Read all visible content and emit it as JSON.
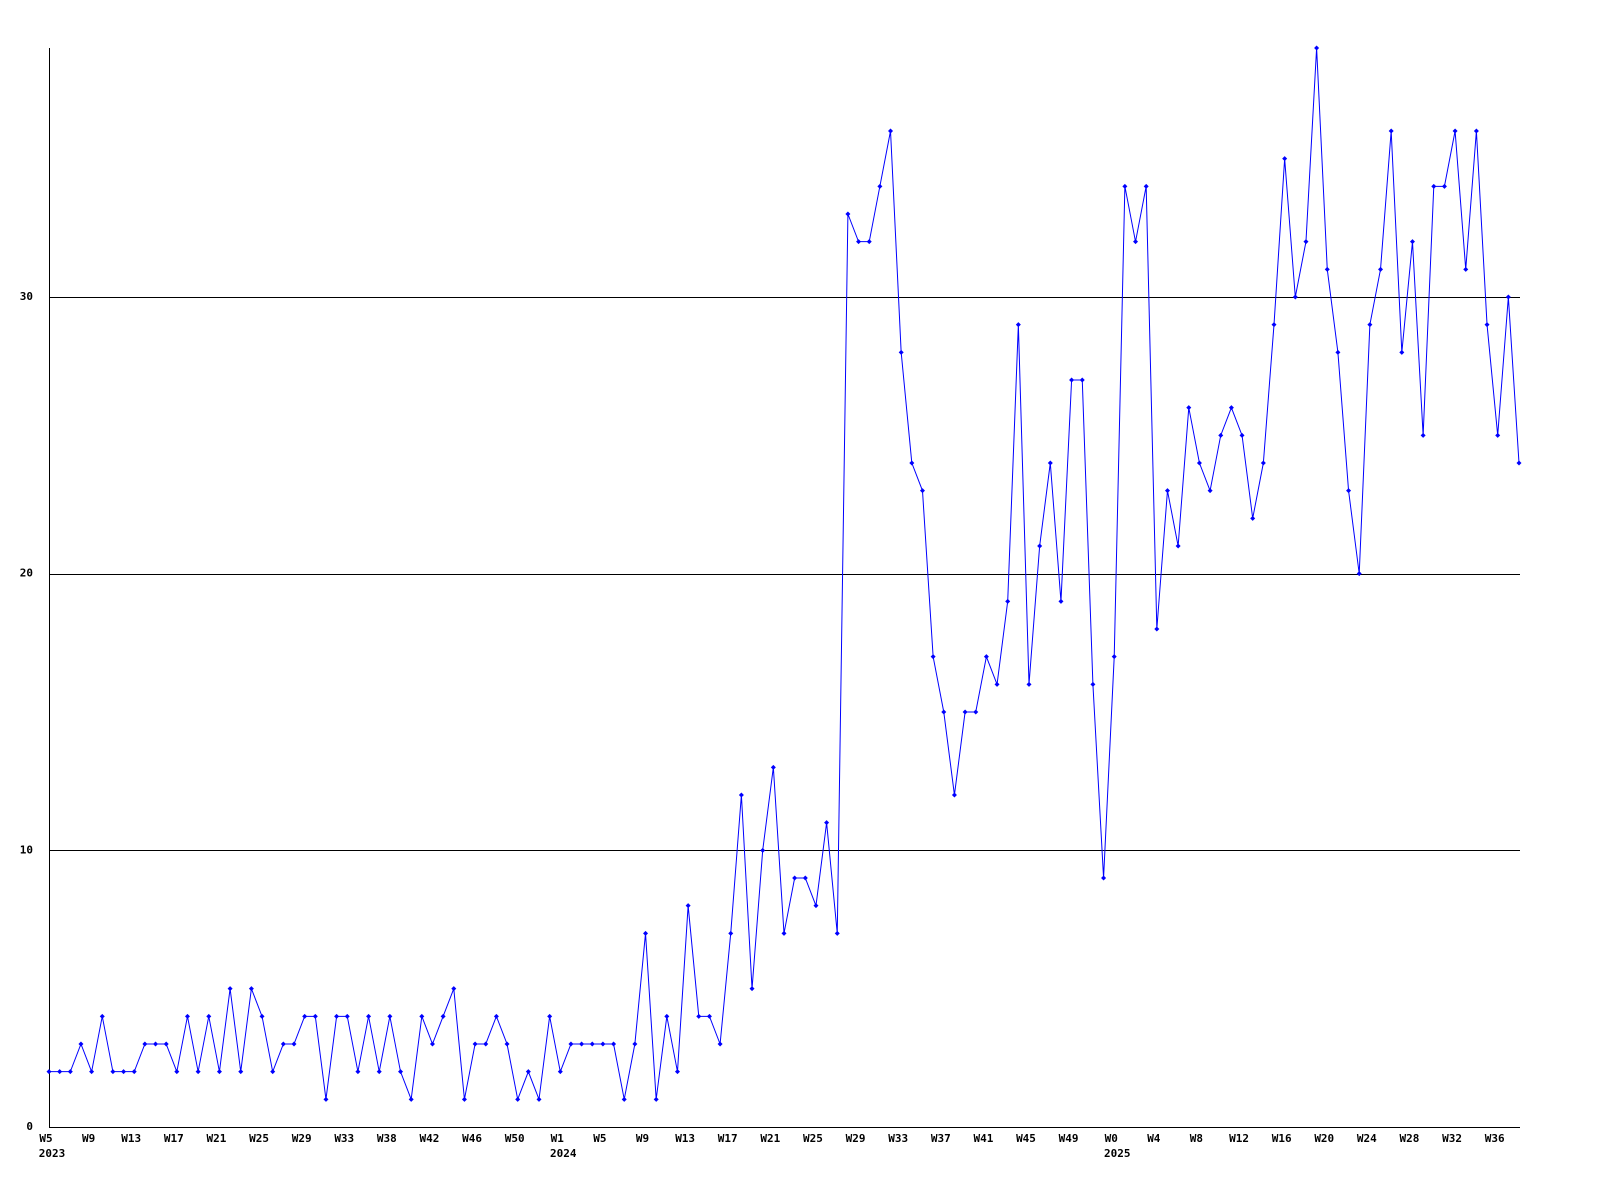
{
  "chart_data": {
    "type": "line",
    "categories": [
      "W5",
      null,
      null,
      null,
      "W9",
      null,
      null,
      null,
      "W13",
      null,
      null,
      null,
      "W17",
      null,
      null,
      null,
      "W21",
      null,
      null,
      null,
      "W25",
      null,
      null,
      null,
      "W29",
      null,
      null,
      null,
      "W33",
      null,
      null,
      null,
      "W38",
      null,
      null,
      null,
      "W42",
      null,
      null,
      null,
      "W46",
      null,
      null,
      null,
      "W50",
      null,
      null,
      null,
      "W1",
      null,
      null,
      null,
      "W5",
      null,
      null,
      null,
      "W9",
      null,
      null,
      null,
      "W13",
      null,
      null,
      null,
      "W17",
      null,
      null,
      null,
      "W21",
      null,
      null,
      null,
      "W25",
      null,
      null,
      null,
      "W29",
      null,
      null,
      null,
      "W33",
      null,
      null,
      null,
      "W37",
      null,
      null,
      null,
      "W41",
      null,
      null,
      null,
      "W45",
      null,
      null,
      null,
      "W49",
      null,
      null,
      null,
      "W0",
      null,
      null,
      null,
      "W4",
      null,
      null,
      null,
      "W8",
      null,
      null,
      null,
      "W12",
      null,
      null,
      null,
      "W16",
      null,
      null,
      null,
      "W20",
      null,
      null,
      null,
      "W24",
      null,
      null,
      null,
      "W28",
      null,
      null,
      null,
      "W32",
      null,
      null,
      null,
      "W36",
      null,
      null
    ],
    "category_years": [
      "2023",
      null,
      null,
      null,
      null,
      null,
      null,
      null,
      null,
      null,
      null,
      null,
      null,
      null,
      null,
      null,
      null,
      null,
      null,
      null,
      null,
      null,
      null,
      null,
      null,
      null,
      null,
      null,
      null,
      null,
      null,
      null,
      null,
      null,
      null,
      null,
      null,
      null,
      null,
      null,
      null,
      null,
      null,
      null,
      null,
      null,
      null,
      null,
      "2024",
      null,
      null,
      null,
      null,
      null,
      null,
      null,
      null,
      null,
      null,
      null,
      null,
      null,
      null,
      null,
      null,
      null,
      null,
      null,
      null,
      null,
      null,
      null,
      null,
      null,
      null,
      null,
      null,
      null,
      null,
      null,
      null,
      null,
      null,
      null,
      null,
      null,
      null,
      null,
      null,
      null,
      null,
      null,
      null,
      null,
      null,
      null,
      null,
      null,
      null,
      null,
      "2025",
      null,
      null,
      null,
      null,
      null,
      null,
      null,
      null,
      null,
      null,
      null,
      null,
      null,
      null,
      null,
      null,
      null,
      null,
      null,
      null,
      null,
      null,
      null,
      null,
      null,
      null,
      null,
      null,
      null,
      null,
      null,
      null,
      null,
      null,
      null,
      null,
      null,
      null
    ],
    "values": [
      2,
      2,
      2,
      3,
      2,
      4,
      2,
      2,
      2,
      3,
      3,
      3,
      2,
      4,
      2,
      4,
      2,
      5,
      2,
      5,
      4,
      2,
      3,
      3,
      4,
      4,
      1,
      4,
      4,
      2,
      4,
      2,
      4,
      2,
      1,
      4,
      3,
      4,
      5,
      1,
      3,
      3,
      4,
      3,
      1,
      2,
      1,
      4,
      2,
      3,
      3,
      3,
      3,
      3,
      1,
      3,
      7,
      1,
      4,
      2,
      8,
      4,
      4,
      3,
      7,
      12,
      5,
      10,
      13,
      7,
      9,
      9,
      8,
      11,
      7,
      33,
      32,
      32,
      34,
      36,
      28,
      24,
      23,
      17,
      15,
      12,
      15,
      15,
      17,
      16,
      19,
      29,
      16,
      21,
      24,
      19,
      27,
      27,
      16,
      9,
      17,
      34,
      32,
      34,
      18,
      23,
      21,
      26,
      24,
      23,
      25,
      26,
      25,
      22,
      24,
      29,
      35,
      30,
      32,
      39,
      31,
      28,
      23,
      20,
      29,
      31,
      36,
      28,
      32,
      25,
      34,
      34,
      36,
      31,
      36,
      29,
      25,
      30,
      24
    ],
    "color": "#0000ff",
    "ylim": [
      0,
      39
    ],
    "yticks": [
      0,
      10,
      20,
      30
    ],
    "grid": true
  }
}
